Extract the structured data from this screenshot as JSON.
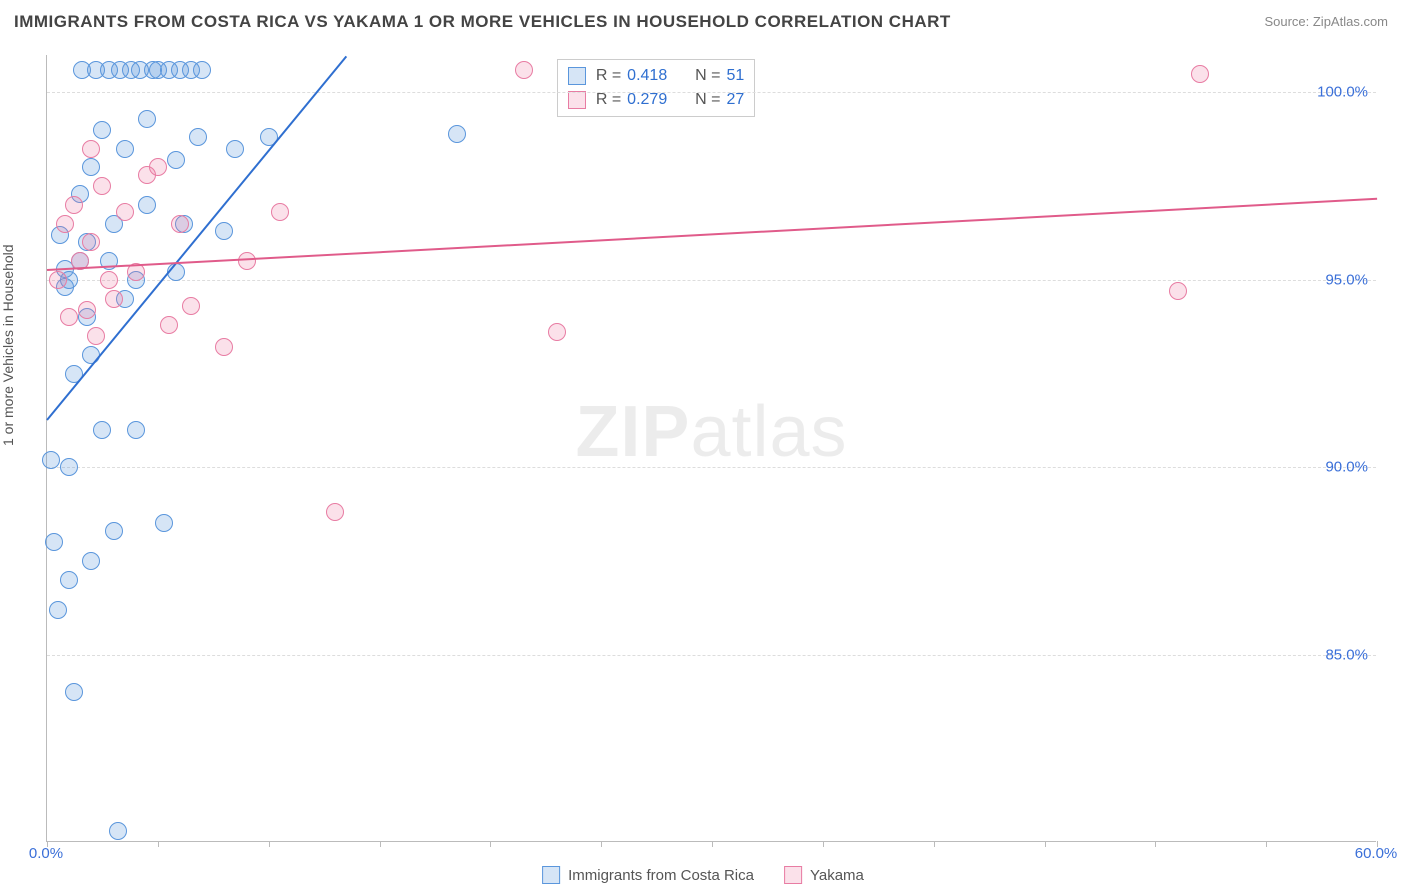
{
  "title": "IMMIGRANTS FROM COSTA RICA VS YAKAMA 1 OR MORE VEHICLES IN HOUSEHOLD CORRELATION CHART",
  "source": "Source: ZipAtlas.com",
  "ylabel": "1 or more Vehicles in Household",
  "watermark_bold": "ZIP",
  "watermark_light": "atlas",
  "colors": {
    "series_a_fill": "rgba(90,150,220,0.25)",
    "series_a_stroke": "#5a96dc",
    "series_b_fill": "rgba(235,120,160,0.22)",
    "series_b_stroke": "#e87ca3",
    "trend_a": "#2f6fd0",
    "trend_b": "#e05b8a",
    "ytick_text": "#3a6fd8",
    "xtick_left": "#3a6fd8",
    "xtick_right": "#3a6fd8",
    "legend_label": "#555",
    "legend_value": "#2f6fd0"
  },
  "chart": {
    "type": "scatter",
    "x_domain": [
      0,
      60
    ],
    "y_domain": [
      80,
      101
    ],
    "y_gridlines": [
      85,
      90,
      95,
      100
    ],
    "y_tick_labels": [
      "85.0%",
      "90.0%",
      "95.0%",
      "100.0%"
    ],
    "x_ticks_minor": [
      0,
      5,
      10,
      15,
      20,
      25,
      30,
      35,
      40,
      45,
      50,
      55,
      60
    ],
    "x_tick_labels": [
      {
        "x": 0,
        "label": "0.0%"
      },
      {
        "x": 60,
        "label": "60.0%"
      }
    ],
    "point_radius": 9,
    "series": [
      {
        "id": "a",
        "label": "Immigrants from Costa Rica",
        "R": "0.418",
        "N": "51",
        "trend": {
          "x1": 0,
          "y1": 91.3,
          "x2": 13.5,
          "y2": 101
        },
        "points": [
          [
            0.2,
            90.2
          ],
          [
            0.5,
            86.2
          ],
          [
            0.6,
            96.2
          ],
          [
            0.8,
            94.8
          ],
          [
            0.8,
            95.3
          ],
          [
            1.0,
            90.0
          ],
          [
            1.0,
            95.0
          ],
          [
            1.0,
            87.0
          ],
          [
            1.2,
            92.5
          ],
          [
            1.2,
            84.0
          ],
          [
            1.5,
            97.3
          ],
          [
            1.5,
            95.5
          ],
          [
            1.6,
            100.6
          ],
          [
            1.8,
            94.0
          ],
          [
            1.8,
            96.0
          ],
          [
            2.0,
            93.0
          ],
          [
            2.0,
            87.5
          ],
          [
            2.0,
            98.0
          ],
          [
            2.2,
            100.6
          ],
          [
            2.5,
            99.0
          ],
          [
            2.5,
            91.0
          ],
          [
            2.8,
            95.5
          ],
          [
            2.8,
            100.6
          ],
          [
            3.0,
            96.5
          ],
          [
            3.0,
            88.3
          ],
          [
            3.2,
            80.3
          ],
          [
            3.3,
            100.6
          ],
          [
            3.5,
            98.5
          ],
          [
            3.5,
            94.5
          ],
          [
            3.8,
            100.6
          ],
          [
            4.0,
            95.0
          ],
          [
            4.0,
            91.0
          ],
          [
            4.2,
            100.6
          ],
          [
            4.5,
            97.0
          ],
          [
            4.5,
            99.3
          ],
          [
            4.8,
            100.6
          ],
          [
            5.0,
            100.6
          ],
          [
            5.3,
            88.5
          ],
          [
            5.5,
            100.6
          ],
          [
            5.8,
            98.2
          ],
          [
            5.8,
            95.2
          ],
          [
            6.0,
            100.6
          ],
          [
            6.2,
            96.5
          ],
          [
            6.5,
            100.6
          ],
          [
            6.8,
            98.8
          ],
          [
            7.0,
            100.6
          ],
          [
            8.0,
            96.3
          ],
          [
            8.5,
            98.5
          ],
          [
            10.0,
            98.8
          ],
          [
            18.5,
            98.9
          ],
          [
            0.3,
            88.0
          ]
        ]
      },
      {
        "id": "b",
        "label": "Yakama",
        "R": "0.279",
        "N": "27",
        "trend": {
          "x1": 0,
          "y1": 95.3,
          "x2": 60,
          "y2": 97.2
        },
        "points": [
          [
            0.5,
            95.0
          ],
          [
            0.8,
            96.5
          ],
          [
            1.0,
            94.0
          ],
          [
            1.2,
            97.0
          ],
          [
            1.5,
            95.5
          ],
          [
            1.8,
            94.2
          ],
          [
            2.0,
            96.0
          ],
          [
            2.2,
            93.5
          ],
          [
            2.5,
            97.5
          ],
          [
            2.8,
            95.0
          ],
          [
            3.0,
            94.5
          ],
          [
            3.5,
            96.8
          ],
          [
            4.0,
            95.2
          ],
          [
            4.5,
            97.8
          ],
          [
            5.0,
            98.0
          ],
          [
            5.5,
            93.8
          ],
          [
            6.0,
            96.5
          ],
          [
            6.5,
            94.3
          ],
          [
            8.0,
            93.2
          ],
          [
            9.0,
            95.5
          ],
          [
            10.5,
            96.8
          ],
          [
            13.0,
            88.8
          ],
          [
            21.5,
            100.6
          ],
          [
            23.0,
            93.6
          ],
          [
            52.0,
            100.5
          ],
          [
            51.0,
            94.7
          ],
          [
            2.0,
            98.5
          ]
        ]
      }
    ]
  },
  "legend_top": {
    "rows": [
      {
        "swatch": "a",
        "r_label": "R =",
        "r_val": "0.418",
        "n_label": "N =",
        "n_val": "51"
      },
      {
        "swatch": "b",
        "r_label": "R =",
        "r_val": "0.279",
        "n_label": "N =",
        "n_val": "27"
      }
    ]
  },
  "legend_bottom": [
    {
      "swatch": "a",
      "label": "Immigrants from Costa Rica"
    },
    {
      "swatch": "b",
      "label": "Yakama"
    }
  ]
}
